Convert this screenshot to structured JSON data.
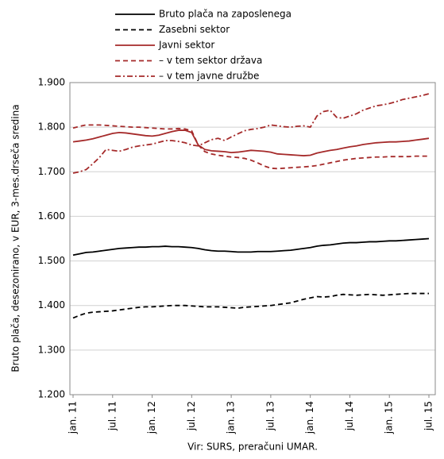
{
  "chart_data": {
    "type": "line",
    "y_label": "Bruto plača, desezonirano, v EUR, 3-mes.drseča sredina",
    "source": "Vir: SURS, preračuni UMAR.",
    "categories": [
      "jan. 11",
      null,
      null,
      null,
      null,
      null,
      "jul. 11",
      null,
      null,
      null,
      null,
      null,
      "jan. 12",
      null,
      null,
      null,
      null,
      null,
      "jul. 12",
      null,
      null,
      null,
      null,
      null,
      "jan. 13",
      null,
      null,
      null,
      null,
      null,
      "jul. 13",
      null,
      null,
      null,
      null,
      null,
      "jan. 14",
      null,
      null,
      null,
      null,
      null,
      "jul. 14",
      null,
      null,
      null,
      null,
      null,
      "jan. 15",
      null,
      null,
      null,
      null,
      null,
      "jul. 15"
    ],
    "ylim": [
      1200,
      1900
    ],
    "yticks": [
      {
        "value": 1200,
        "label": "1.200"
      },
      {
        "value": 1300,
        "label": "1.300"
      },
      {
        "value": 1400,
        "label": "1.400"
      },
      {
        "value": 1500,
        "label": "1.500"
      },
      {
        "value": 1600,
        "label": "1.600"
      },
      {
        "value": 1700,
        "label": "1.700"
      },
      {
        "value": 1800,
        "label": "1.800"
      },
      {
        "value": 1900,
        "label": "1.900"
      }
    ],
    "grid": true,
    "series": [
      {
        "name": "Bruto plača na zaposlenega",
        "color": "#000000",
        "dash": "solid",
        "values": [
          1513,
          1516,
          1519,
          1520,
          1522,
          1524,
          1526,
          1528,
          1529,
          1530,
          1531,
          1531,
          1532,
          1532,
          1533,
          1532,
          1532,
          1531,
          1530,
          1528,
          1525,
          1523,
          1522,
          1522,
          1521,
          1520,
          1520,
          1520,
          1521,
          1521,
          1521,
          1522,
          1523,
          1524,
          1526,
          1528,
          1530,
          1533,
          1535,
          1536,
          1538,
          1540,
          1541,
          1541,
          1542,
          1543,
          1543,
          1544,
          1545,
          1545,
          1546,
          1547,
          1548,
          1549,
          1550
        ]
      },
      {
        "name": "Zasebni sektor",
        "color": "#000000",
        "dash": "dashed",
        "values": [
          1372,
          1378,
          1383,
          1385,
          1386,
          1387,
          1388,
          1390,
          1392,
          1394,
          1396,
          1397,
          1397,
          1398,
          1399,
          1400,
          1400,
          1400,
          1399,
          1398,
          1397,
          1397,
          1397,
          1396,
          1395,
          1394,
          1396,
          1397,
          1398,
          1399,
          1400,
          1402,
          1404,
          1406,
          1410,
          1414,
          1417,
          1420,
          1419,
          1420,
          1423,
          1425,
          1424,
          1423,
          1424,
          1425,
          1424,
          1423,
          1424,
          1425,
          1426,
          1427,
          1427,
          1427,
          1427
        ]
      },
      {
        "name": "Javni sektor",
        "color": "#a52a2a",
        "dash": "solid",
        "values": [
          1767,
          1769,
          1771,
          1774,
          1778,
          1782,
          1786,
          1788,
          1787,
          1785,
          1783,
          1781,
          1780,
          1782,
          1786,
          1790,
          1793,
          1793,
          1788,
          1760,
          1750,
          1747,
          1746,
          1745,
          1743,
          1744,
          1746,
          1748,
          1747,
          1746,
          1744,
          1740,
          1739,
          1738,
          1737,
          1736,
          1737,
          1742,
          1745,
          1748,
          1750,
          1753,
          1756,
          1758,
          1761,
          1763,
          1765,
          1766,
          1767,
          1767,
          1768,
          1769,
          1771,
          1773,
          1775
        ]
      },
      {
        "name": "– v tem sektor država",
        "color": "#a52a2a",
        "dash": "dashed",
        "values": [
          1798,
          1802,
          1805,
          1805,
          1805,
          1804,
          1803,
          1802,
          1801,
          1800,
          1800,
          1799,
          1798,
          1797,
          1796,
          1796,
          1797,
          1796,
          1792,
          1760,
          1745,
          1740,
          1737,
          1735,
          1733,
          1732,
          1730,
          1726,
          1720,
          1713,
          1708,
          1707,
          1708,
          1709,
          1710,
          1711,
          1712,
          1714,
          1717,
          1720,
          1723,
          1726,
          1728,
          1730,
          1731,
          1732,
          1733,
          1733,
          1734,
          1734,
          1734,
          1734,
          1735,
          1735,
          1735
        ]
      },
      {
        "name": "– v tem javne družbe",
        "color": "#a52a2a",
        "dash": "dashdot",
        "values": [
          1697,
          1700,
          1705,
          1718,
          1732,
          1750,
          1748,
          1746,
          1750,
          1755,
          1758,
          1760,
          1762,
          1766,
          1770,
          1770,
          1768,
          1765,
          1760,
          1758,
          1765,
          1772,
          1775,
          1770,
          1778,
          1785,
          1792,
          1795,
          1797,
          1800,
          1805,
          1803,
          1801,
          1800,
          1802,
          1803,
          1800,
          1825,
          1835,
          1838,
          1822,
          1820,
          1825,
          1830,
          1838,
          1843,
          1848,
          1850,
          1853,
          1857,
          1862,
          1865,
          1868,
          1871,
          1875
        ]
      }
    ]
  }
}
